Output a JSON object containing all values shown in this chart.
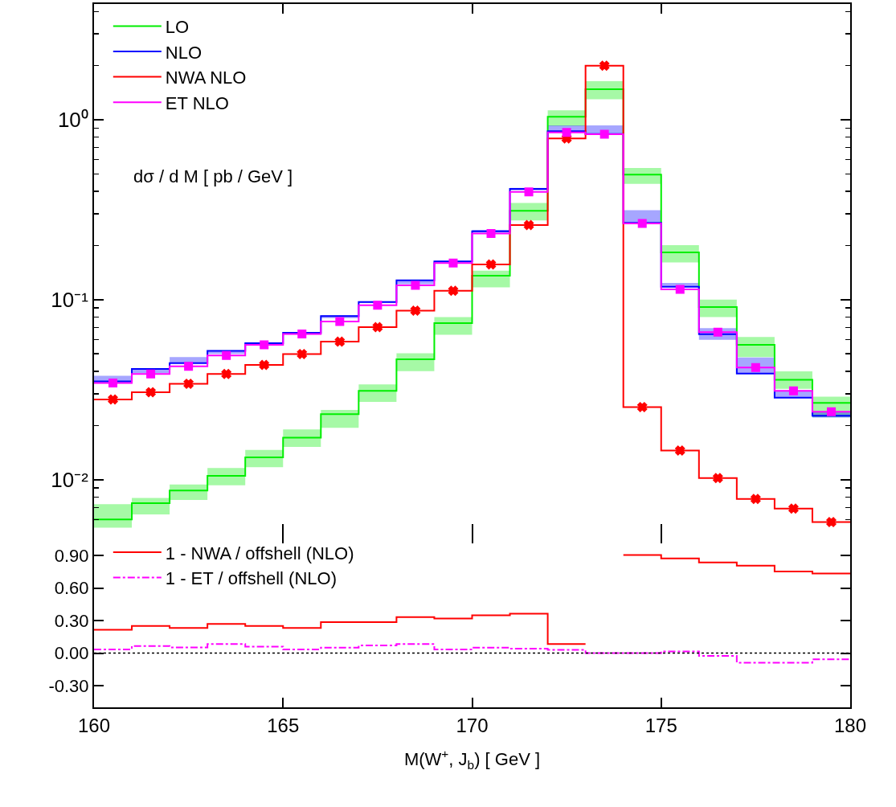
{
  "chart_data": [
    {
      "type": "step",
      "x": [
        160,
        161,
        162,
        163,
        164,
        165,
        166,
        167,
        168,
        169,
        170,
        171,
        172,
        173,
        174,
        175,
        176,
        177,
        178,
        179,
        180
      ],
      "xlim": [
        160,
        180
      ],
      "ylim": [
        0.005,
        4.4
      ],
      "log": "y",
      "tick_labels": "y",
      "ylabel": "dσ / d M [ pb / GeV ]",
      "legend": "top left",
      "xticks": [
        160,
        165,
        170,
        175,
        180
      ],
      "yticks": [
        {
          "value": 0.006,
          "label": null
        },
        {
          "value": 0.007,
          "label": null
        },
        {
          "value": 0.008,
          "label": null
        },
        {
          "value": 0.009,
          "label": null
        },
        {
          "value": 0.01,
          "label": "10⁻²"
        },
        {
          "value": 0.02,
          "label": null
        },
        {
          "value": 0.03,
          "label": null
        },
        {
          "value": 0.04,
          "label": null
        },
        {
          "value": 0.05,
          "label": null
        },
        {
          "value": 0.06,
          "label": null
        },
        {
          "value": 0.07,
          "label": null
        },
        {
          "value": 0.08,
          "label": null
        },
        {
          "value": 0.09,
          "label": null
        },
        {
          "value": 0.1,
          "label": "10⁻¹"
        },
        {
          "value": 0.2,
          "label": null
        },
        {
          "value": 0.3,
          "label": null
        },
        {
          "value": 0.4,
          "label": null
        },
        {
          "value": 0.5,
          "label": null
        },
        {
          "value": 0.6,
          "label": null
        },
        {
          "value": 0.7,
          "label": null
        },
        {
          "value": 0.8,
          "label": null
        },
        {
          "value": 0.9,
          "label": null
        },
        {
          "value": 1,
          "label": "10⁰"
        },
        {
          "value": 2,
          "label": null
        },
        {
          "value": 3,
          "label": null
        },
        {
          "value": 4,
          "label": null
        }
      ],
      "series": [
        {
          "name": "LO",
          "color": "#00ee00",
          "values": [
            0.006,
            0.0074,
            0.0087,
            0.0105,
            0.0133,
            0.0171,
            0.0231,
            0.0311,
            0.0466,
            0.074,
            0.136,
            0.312,
            1.04,
            1.48,
            0.496,
            0.183,
            0.0909,
            0.0561,
            0.0359,
            0.0267,
            0.0267
          ],
          "lower": [
            0.0054,
            0.0064,
            0.0077,
            0.0093,
            0.0117,
            0.0152,
            0.0194,
            0.027,
            0.0401,
            0.0638,
            0.117,
            0.276,
            0.924,
            1.3,
            0.44,
            0.161,
            0.08,
            0.048,
            0.0319,
            0.0222,
            0.0222
          ],
          "upper": [
            0.0073,
            0.0079,
            0.0094,
            0.0116,
            0.0146,
            0.019,
            0.0244,
            0.0338,
            0.0503,
            0.08,
            0.145,
            0.345,
            1.13,
            1.64,
            0.54,
            0.201,
            0.1,
            0.062,
            0.04,
            0.0289,
            0.0289
          ]
        },
        {
          "name": "NLO",
          "color": "#0000ff",
          "values": [
            0.0351,
            0.0412,
            0.0444,
            0.052,
            0.0572,
            0.0654,
            0.081,
            0.097,
            0.128,
            0.163,
            0.24,
            0.413,
            0.863,
            0.834,
            0.267,
            0.118,
            0.0643,
            0.0388,
            0.0285,
            0.0226,
            0.0226
          ],
          "lower": [
            0.0344,
            0.039,
            0.0444,
            0.05,
            0.056,
            0.064,
            0.079,
            0.096,
            0.122,
            0.161,
            0.236,
            0.405,
            0.863,
            0.834,
            0.267,
            0.118,
            0.0598,
            0.0388,
            0.0285,
            0.0221,
            0.0221
          ],
          "upper": [
            0.0378,
            0.0412,
            0.048,
            0.052,
            0.058,
            0.066,
            0.082,
            0.098,
            0.129,
            0.165,
            0.244,
            0.418,
            0.93,
            0.93,
            0.314,
            0.124,
            0.0695,
            0.0477,
            0.031,
            0.0237,
            0.0237
          ]
        },
        {
          "name": "NWA NLO",
          "color": "#ff0000",
          "values": [
            0.0279,
            0.0306,
            0.0341,
            0.0386,
            0.0434,
            0.0499,
            0.0584,
            0.0703,
            0.0869,
            0.112,
            0.157,
            0.26,
            0.787,
            2.0,
            0.0253,
            0.0145,
            0.0102,
            0.0078,
            0.0069,
            0.0058,
            0.0058
          ]
        },
        {
          "name": "ET NLO",
          "color": "#ff00ff",
          "values": [
            0.0344,
            0.0386,
            0.0426,
            0.0489,
            0.0561,
            0.0645,
            0.0757,
            0.093,
            0.12,
            0.16,
            0.233,
            0.397,
            0.85,
            0.83,
            0.265,
            0.114,
            0.066,
            0.0419,
            0.0311,
            0.0238,
            0.0238
          ]
        },
        {
          "type": "scatter",
          "color": "#ff0000",
          "marker": "cross",
          "x": [
            160.5,
            161.5,
            162.5,
            163.5,
            164.5,
            165.5,
            166.5,
            167.5,
            168.5,
            169.5,
            170.5,
            171.5,
            172.5,
            173.5,
            174.5,
            175.5,
            176.5,
            177.5,
            178.5,
            179.5
          ],
          "values": [
            0.0279,
            0.0306,
            0.0341,
            0.0386,
            0.0434,
            0.0499,
            0.0584,
            0.0703,
            0.0869,
            0.112,
            0.157,
            0.26,
            0.787,
            2.0,
            0.0253,
            0.0145,
            0.0102,
            0.0078,
            0.0069,
            0.0058
          ]
        },
        {
          "type": "scatter",
          "color": "#ff00ff",
          "marker": "square",
          "x": [
            160.5,
            161.5,
            162.5,
            163.5,
            164.5,
            165.5,
            166.5,
            167.5,
            168.5,
            169.5,
            170.5,
            171.5,
            172.5,
            173.5,
            174.5,
            175.5,
            176.5,
            177.5,
            178.5,
            179.5
          ],
          "values": [
            0.0344,
            0.0386,
            0.0426,
            0.0489,
            0.0561,
            0.0645,
            0.0757,
            0.093,
            0.12,
            0.16,
            0.233,
            0.397,
            0.85,
            0.83,
            0.265,
            0.114,
            0.066,
            0.0419,
            0.0311,
            0.0238
          ]
        }
      ]
    },
    {
      "type": "step",
      "x": [
        160,
        161,
        162,
        163,
        164,
        165,
        166,
        167,
        168,
        169,
        170,
        171,
        172,
        173,
        174,
        175,
        176,
        177,
        178,
        179,
        180
      ],
      "xlim": [
        160,
        180
      ],
      "ylim": [
        -0.5,
        1.1
      ],
      "xlabel": "M(W$^{+}$, J$_{b}$) [ GeV ]",
      "legend": "top left",
      "xticks": [
        160,
        165,
        170,
        175,
        180
      ],
      "yticks": [
        {
          "value": -0.3,
          "label": "-0.30"
        },
        {
          "value": 0,
          "label": "0.00"
        },
        {
          "value": 0.3,
          "label": "0.30"
        },
        {
          "value": 0.6,
          "label": "0.60"
        },
        {
          "value": 0.9,
          "label": "0.90"
        }
      ],
      "ref_lines": [
        {
          "axis": "y",
          "value": 0,
          "color": "#000000",
          "line_style": "dotted"
        }
      ],
      "series": [
        {
          "name": "1 - NWA / offshell (NLO)",
          "color": "#ff0000",
          "line_style": "solid",
          "values": [
            0.214,
            0.25,
            0.232,
            0.268,
            0.25,
            0.232,
            0.286,
            0.286,
            0.331,
            0.318,
            0.349,
            0.363,
            0.083,
            null,
            0.904,
            0.872,
            0.836,
            0.805,
            0.751,
            0.733,
            0.733
          ]
        },
        {
          "name": "1 - ET / offshell (NLO)",
          "color": "#ff00ff",
          "line_style": "dashdot",
          "values": [
            0.033,
            0.065,
            0.052,
            0.083,
            0.06,
            0.033,
            0.05,
            0.07,
            0.083,
            0.033,
            0.05,
            0.04,
            0.03,
            0.0,
            0.0,
            0.015,
            -0.025,
            -0.088,
            -0.088,
            -0.057,
            -0.057
          ]
        }
      ]
    }
  ]
}
